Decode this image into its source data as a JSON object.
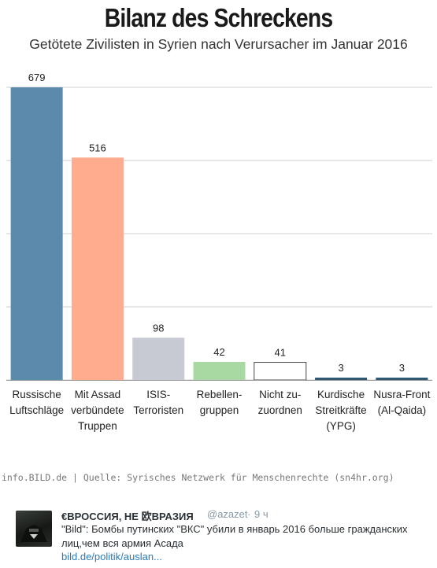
{
  "chart_data": {
    "type": "bar",
    "title": "Bilanz des Schreckens",
    "subtitle": "Getötete Zivilisten in Syrien nach Verursacher im Januar 2016",
    "categories": [
      [
        "Russische",
        "Luftschläge"
      ],
      [
        "Mit Assad",
        "verbündete",
        "Truppen"
      ],
      [
        "ISIS-",
        "Terroristen"
      ],
      [
        "Rebellen-",
        "gruppen"
      ],
      [
        "Nicht zu-",
        "zuordnen"
      ],
      [
        "Kurdische",
        "Streitkräfte",
        "(YPG)"
      ],
      [
        "Nusra-Front",
        "(Al-Qaida)"
      ]
    ],
    "values": [
      679,
      516,
      98,
      42,
      41,
      3,
      3
    ],
    "value_labels": [
      "679",
      "516",
      "98",
      "42",
      "41",
      "3",
      "3"
    ],
    "colors": [
      "#5b8aad",
      "#ffab8e",
      "#c8cad3",
      "#a9d9a2",
      "#ffffff",
      "#2d5774",
      "#2d5774"
    ],
    "ylim": [
      0,
      679
    ],
    "grid": true,
    "xlabel": "",
    "ylabel": ""
  },
  "source": "info.BILD.de | Quelle: Syrisches Netzwerk für Menschenrechte (sn4hr.org)",
  "tweet": {
    "name": "€ВРОССИЯ, НЕ 欧ВРАЗИЯ",
    "handle": "@azazet",
    "separator": "·",
    "time": "9 ч",
    "text": "\"Bild\": Бомбы путинских \"ВКС\" убили в январь 2016 больше гражданских лиц,чем вся армия Асада",
    "link": "bild.de/politik/auslan..."
  }
}
